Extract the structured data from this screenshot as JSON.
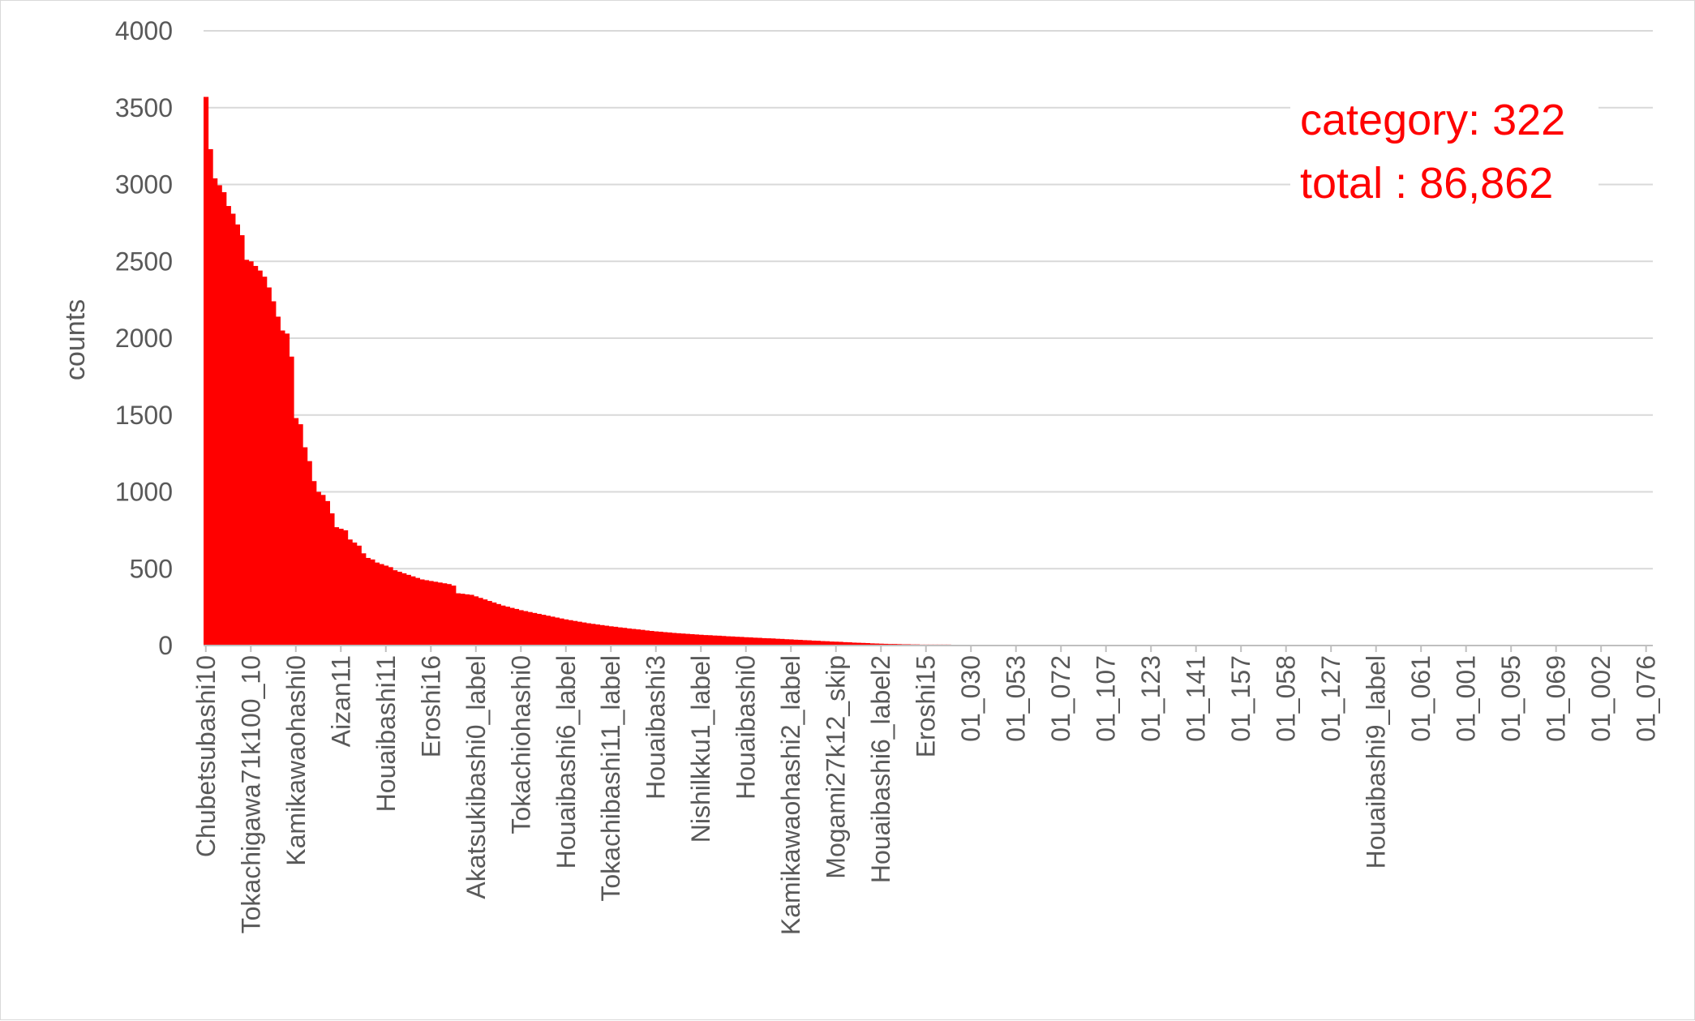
{
  "chart_data": {
    "type": "bar",
    "title": "",
    "xlabel": "",
    "ylabel": "counts",
    "ylim": [
      0,
      4000
    ],
    "yticks": [
      "0",
      "500",
      "1000",
      "1500",
      "2000",
      "2500",
      "3000",
      "3500",
      "4000"
    ],
    "grid": true,
    "legend": "none",
    "bar_color": "#ff0000",
    "category_count": 322,
    "labeled_categories": [
      {
        "index": 0,
        "label": "Chubetsubashi10"
      },
      {
        "index": 10,
        "label": "Tokachigawa71k100_10"
      },
      {
        "index": 20,
        "label": "Kamikawaohashi0"
      },
      {
        "index": 30,
        "label": "Aizan11"
      },
      {
        "index": 40,
        "label": "Houaibashi11"
      },
      {
        "index": 50,
        "label": "Eroshi16"
      },
      {
        "index": 60,
        "label": "Akatsukibashi0_label"
      },
      {
        "index": 70,
        "label": "Tokachiohashi0"
      },
      {
        "index": 80,
        "label": "Houaibashi6_label"
      },
      {
        "index": 90,
        "label": "Tokachibashi11_label"
      },
      {
        "index": 100,
        "label": "Houaibashi3"
      },
      {
        "index": 110,
        "label": "Nishilkku1_label"
      },
      {
        "index": 120,
        "label": "Houaibashi0"
      },
      {
        "index": 130,
        "label": "Kamikawaohashi2_label"
      },
      {
        "index": 140,
        "label": "Mogami27k12_skip"
      },
      {
        "index": 150,
        "label": "Houaibashi6_label2"
      },
      {
        "index": 160,
        "label": "Eroshi15"
      },
      {
        "index": 170,
        "label": "01_030"
      },
      {
        "index": 180,
        "label": "01_053"
      },
      {
        "index": 190,
        "label": "01_072"
      },
      {
        "index": 200,
        "label": "01_107"
      },
      {
        "index": 210,
        "label": "01_123"
      },
      {
        "index": 220,
        "label": "01_141"
      },
      {
        "index": 230,
        "label": "01_157"
      },
      {
        "index": 240,
        "label": "01_058"
      },
      {
        "index": 250,
        "label": "01_127"
      },
      {
        "index": 260,
        "label": "Houaibashi9_label"
      },
      {
        "index": 270,
        "label": "01_061"
      },
      {
        "index": 280,
        "label": "01_001"
      },
      {
        "index": 290,
        "label": "01_095"
      },
      {
        "index": 300,
        "label": "01_069"
      },
      {
        "index": 310,
        "label": "01_002"
      },
      {
        "index": 320,
        "label": "01_076"
      }
    ],
    "value_profile": [
      [
        0,
        3570
      ],
      [
        1,
        3230
      ],
      [
        2,
        3040
      ],
      [
        4,
        2950
      ],
      [
        5,
        2860
      ],
      [
        6,
        2810
      ],
      [
        7,
        2740
      ],
      [
        8,
        2670
      ],
      [
        9,
        2510
      ],
      [
        10,
        2500
      ],
      [
        11,
        2470
      ],
      [
        12,
        2440
      ],
      [
        13,
        2400
      ],
      [
        14,
        2330
      ],
      [
        15,
        2240
      ],
      [
        16,
        2140
      ],
      [
        17,
        2050
      ],
      [
        18,
        2030
      ],
      [
        19,
        1880
      ],
      [
        20,
        1480
      ],
      [
        21,
        1440
      ],
      [
        22,
        1290
      ],
      [
        23,
        1200
      ],
      [
        24,
        1070
      ],
      [
        25,
        1000
      ],
      [
        26,
        980
      ],
      [
        27,
        940
      ],
      [
        28,
        860
      ],
      [
        29,
        770
      ],
      [
        31,
        750
      ],
      [
        32,
        690
      ],
      [
        33,
        670
      ],
      [
        34,
        650
      ],
      [
        35,
        600
      ],
      [
        36,
        570
      ],
      [
        37,
        560
      ],
      [
        38,
        540
      ],
      [
        40,
        520
      ],
      [
        41,
        510
      ],
      [
        42,
        490
      ],
      [
        44,
        470
      ],
      [
        46,
        450
      ],
      [
        48,
        430
      ],
      [
        50,
        420
      ],
      [
        52,
        410
      ],
      [
        54,
        400
      ],
      [
        55,
        390
      ],
      [
        56,
        340
      ],
      [
        59,
        330
      ],
      [
        60,
        320
      ],
      [
        62,
        300
      ],
      [
        64,
        280
      ],
      [
        66,
        260
      ],
      [
        70,
        230
      ],
      [
        75,
        200
      ],
      [
        80,
        170
      ],
      [
        85,
        145
      ],
      [
        90,
        125
      ],
      [
        95,
        108
      ],
      [
        100,
        92
      ],
      [
        105,
        80
      ],
      [
        110,
        70
      ],
      [
        115,
        62
      ],
      [
        120,
        54
      ],
      [
        125,
        47
      ],
      [
        130,
        40
      ],
      [
        135,
        32
      ],
      [
        140,
        25
      ],
      [
        145,
        18
      ],
      [
        150,
        12
      ],
      [
        155,
        8
      ],
      [
        160,
        6
      ],
      [
        170,
        5
      ],
      [
        200,
        4
      ],
      [
        230,
        3
      ],
      [
        258,
        2
      ],
      [
        259,
        0
      ],
      [
        321,
        0
      ]
    ],
    "annotations": [
      "category: 322",
      "total : 86,862"
    ]
  }
}
